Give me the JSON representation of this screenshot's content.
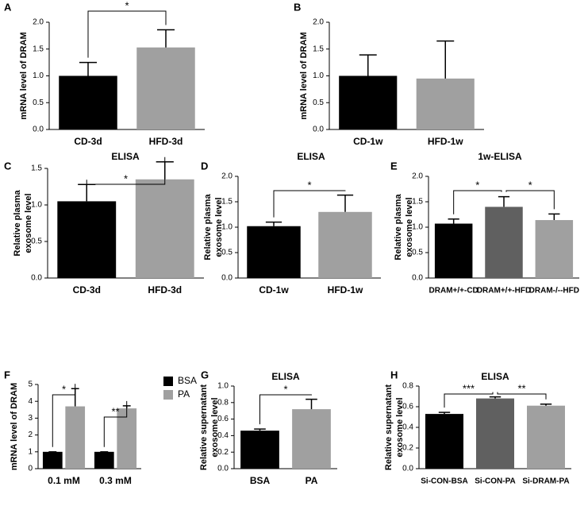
{
  "chart_data": [
    {
      "type": "bar",
      "panel": "A",
      "ylabel": [
        "mRNA level of DRAM"
      ],
      "categories": [
        "CD-3d",
        "HFD-3d"
      ],
      "values": [
        1.0,
        1.53
      ],
      "errors": [
        0.25,
        0.33
      ],
      "colors": [
        "#000000",
        "#a0a0a0"
      ],
      "ylim": [
        0,
        2
      ],
      "yticks": [
        {
          "value": 0,
          "label": "0.0"
        },
        {
          "value": 0.5,
          "label": "0.5"
        },
        {
          "value": 1,
          "label": "1.0"
        },
        {
          "value": 1.5,
          "label": "1.5"
        },
        {
          "value": 2,
          "label": "2.0"
        }
      ],
      "annotations": [
        "*"
      ]
    },
    {
      "type": "bar",
      "panel": "B",
      "ylabel": [
        "mRNA level of DRAM"
      ],
      "categories": [
        "CD-1w",
        "HFD-1w"
      ],
      "values": [
        1.0,
        0.95
      ],
      "errors": [
        0.39,
        0.7
      ],
      "colors": [
        "#000000",
        "#a0a0a0"
      ],
      "ylim": [
        0,
        2
      ],
      "yticks": [
        {
          "value": 0,
          "label": "0.0"
        },
        {
          "value": 0.5,
          "label": "0.5"
        },
        {
          "value": 1,
          "label": "1.0"
        },
        {
          "value": 1.5,
          "label": "1.5"
        },
        {
          "value": 2,
          "label": "2.0"
        }
      ],
      "annotations": []
    },
    {
      "type": "bar",
      "panel": "C",
      "title": "ELISA",
      "ylabel": [
        "Relative plasma",
        "exosome level"
      ],
      "categories": [
        "CD-3d",
        "HFD-3d"
      ],
      "values": [
        1.05,
        1.35
      ],
      "errors": [
        0.23,
        0.24
      ],
      "colors": [
        "#000000",
        "#a0a0a0"
      ],
      "ylim": [
        0,
        1.5
      ],
      "yticks": [
        {
          "value": 0,
          "label": "0.0"
        },
        {
          "value": 0.5,
          "label": "0.5"
        },
        {
          "value": 1,
          "label": "1.0"
        },
        {
          "value": 1.5,
          "label": "1.5"
        }
      ],
      "annotations": [
        "*"
      ]
    },
    {
      "type": "bar",
      "panel": "D",
      "title": "ELISA",
      "ylabel": [
        "Relative plasma",
        "exosome level"
      ],
      "categories": [
        "CD-1w",
        "HFD-1w"
      ],
      "values": [
        1.02,
        1.3
      ],
      "errors": [
        0.08,
        0.33
      ],
      "colors": [
        "#000000",
        "#a0a0a0"
      ],
      "ylim": [
        0,
        2
      ],
      "yticks": [
        {
          "value": 0,
          "label": "0.0"
        },
        {
          "value": 0.5,
          "label": "0.5"
        },
        {
          "value": 1,
          "label": "1.0"
        },
        {
          "value": 1.5,
          "label": "1.5"
        },
        {
          "value": 2,
          "label": "2.0"
        }
      ],
      "annotations": [
        "*"
      ]
    },
    {
      "type": "bar",
      "panel": "E",
      "title": "1w-ELISA",
      "ylabel": [
        "Relative plasma",
        "exosome level"
      ],
      "categories": [
        "DRAM+/+-CD",
        "DRAM+/+-HFD",
        "DRAM-/--HFD"
      ],
      "values": [
        1.07,
        1.4,
        1.14
      ],
      "errors": [
        0.09,
        0.2,
        0.12
      ],
      "colors": [
        "#000000",
        "#606060",
        "#a0a0a0"
      ],
      "ylim": [
        0,
        2
      ],
      "yticks": [
        {
          "value": 0,
          "label": "0.0"
        },
        {
          "value": 0.5,
          "label": "0.5"
        },
        {
          "value": 1,
          "label": "1.0"
        },
        {
          "value": 1.5,
          "label": "1.5"
        },
        {
          "value": 2,
          "label": "2.0"
        }
      ],
      "annotations": [
        "*",
        "*"
      ]
    },
    {
      "type": "grouped_bar",
      "panel": "F",
      "ylabel": [
        "mRNA level of DRAM"
      ],
      "categories": [
        "0.1 mM",
        "0.3 mM"
      ],
      "series": [
        {
          "name": "BSA",
          "color": "#000000",
          "values": [
            1,
            1
          ],
          "errors": [
            0,
            0
          ]
        },
        {
          "name": "PA",
          "color": "#a0a0a0",
          "values": [
            3.7,
            3.58
          ],
          "errors": [
            1.05,
            0.15
          ]
        }
      ],
      "ylim": [
        0,
        5
      ],
      "yticks": [
        0,
        1,
        2,
        3,
        4,
        5
      ],
      "annotations": [
        "*",
        "**"
      ]
    },
    {
      "type": "bar",
      "panel": "G",
      "title": "ELISA",
      "ylabel": [
        "Relative supernatant",
        "exosome level"
      ],
      "categories": [
        "BSA",
        "PA"
      ],
      "values": [
        0.46,
        0.72
      ],
      "errors": [
        0.02,
        0.12
      ],
      "colors": [
        "#000000",
        "#a0a0a0"
      ],
      "ylim": [
        0,
        1
      ],
      "yticks": [
        {
          "value": 0,
          "label": "0.0"
        },
        {
          "value": 0.2,
          "label": "0.2"
        },
        {
          "value": 0.4,
          "label": "0.4"
        },
        {
          "value": 0.6,
          "label": "0.6"
        },
        {
          "value": 0.8,
          "label": "0.8"
        },
        {
          "value": 1,
          "label": "1.0"
        }
      ],
      "annotations": [
        "*"
      ]
    },
    {
      "type": "bar",
      "panel": "H",
      "title": "ELISA",
      "ylabel": [
        "Relative supernatant",
        "exosome level"
      ],
      "categories": [
        "Si-CON-BSA",
        "Si-CON-PA",
        "Si-DRAM-PA"
      ],
      "values": [
        0.53,
        0.68,
        0.61
      ],
      "errors": [
        0.015,
        0.015,
        0.015
      ],
      "colors": [
        "#000000",
        "#606060",
        "#a0a0a0"
      ],
      "ylim": [
        0,
        0.8
      ],
      "yticks": [
        {
          "value": 0,
          "label": "0.0"
        },
        {
          "value": 0.2,
          "label": "0.2"
        },
        {
          "value": 0.4,
          "label": "0.4"
        },
        {
          "value": 0.6,
          "label": "0.6"
        },
        {
          "value": 0.8,
          "label": "0.8"
        }
      ],
      "annotations": [
        "***",
        "**"
      ]
    }
  ]
}
